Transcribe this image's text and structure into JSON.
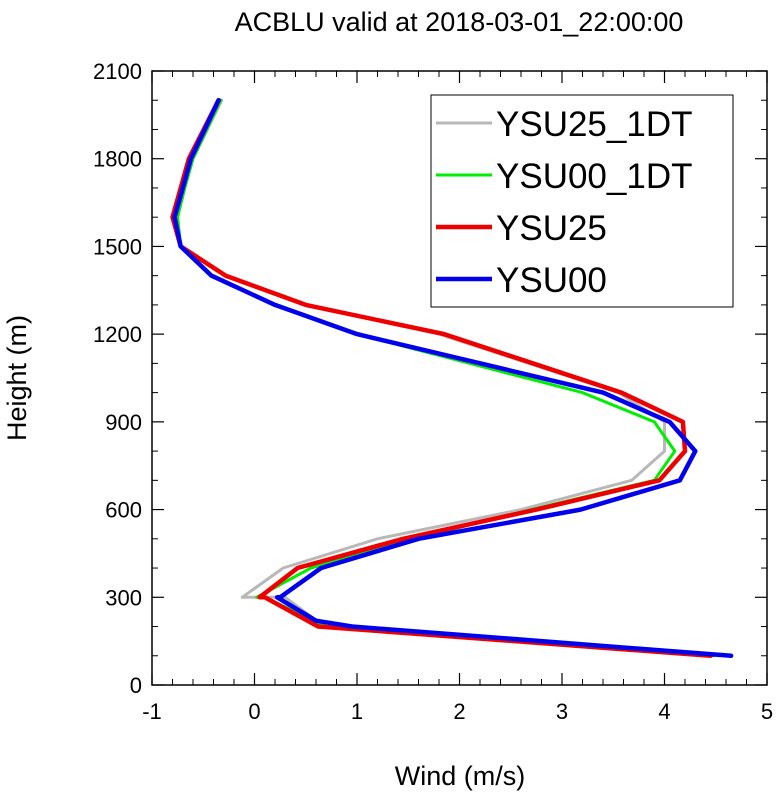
{
  "chart_data": {
    "type": "line",
    "title": "ACBLU valid at 2018-03-01_22:00:00",
    "xlabel": "Wind (m/s)",
    "ylabel": "Height (m)",
    "xlim": [
      -1,
      5
    ],
    "ylim": [
      0,
      2100
    ],
    "x_ticks": [
      "-1",
      "0",
      "1",
      "2",
      "3",
      "4",
      "5"
    ],
    "y_ticks": [
      "0",
      "300",
      "600",
      "900",
      "1200",
      "1500",
      "1800",
      "2100"
    ],
    "grid": false,
    "legend_position": "top-right",
    "series": [
      {
        "name": "YSU25_1DT",
        "color": "#b8b8b8",
        "width": 3,
        "points": [
          [
            4.45,
            100
          ],
          [
            0.68,
            200
          ],
          [
            0.3,
            300
          ],
          [
            -0.12,
            300
          ],
          [
            0.28,
            400
          ],
          [
            1.2,
            500
          ],
          [
            2.6,
            600
          ],
          [
            3.68,
            700
          ],
          [
            4.0,
            800
          ],
          [
            4.0,
            900
          ],
          [
            3.55,
            1000
          ],
          [
            1.8,
            1200
          ],
          [
            0.5,
            1300
          ],
          [
            -0.28,
            1400
          ],
          [
            -0.72,
            1500
          ],
          [
            -0.78,
            1600
          ],
          [
            -0.72,
            1700
          ],
          [
            -0.6,
            1800
          ],
          [
            -0.32,
            2000
          ]
        ]
      },
      {
        "name": "YSU00_1DT",
        "color": "#00ee00",
        "width": 3,
        "points": [
          [
            4.48,
            100
          ],
          [
            0.7,
            200
          ],
          [
            0.1,
            300
          ],
          [
            0.02,
            300
          ],
          [
            0.55,
            400
          ],
          [
            1.55,
            500
          ],
          [
            2.7,
            600
          ],
          [
            3.9,
            700
          ],
          [
            4.1,
            800
          ],
          [
            3.9,
            900
          ],
          [
            3.2,
            1000
          ],
          [
            1.0,
            1200
          ],
          [
            0.2,
            1300
          ],
          [
            -0.42,
            1400
          ],
          [
            -0.72,
            1500
          ],
          [
            -0.75,
            1600
          ],
          [
            -0.68,
            1700
          ],
          [
            -0.6,
            1800
          ],
          [
            -0.33,
            2000
          ]
        ]
      },
      {
        "name": "YSU25",
        "color": "#ee0000",
        "width": 4.5,
        "points": [
          [
            4.45,
            100
          ],
          [
            0.62,
            200
          ],
          [
            0.1,
            300
          ],
          [
            0.05,
            300
          ],
          [
            0.42,
            400
          ],
          [
            1.45,
            500
          ],
          [
            2.75,
            600
          ],
          [
            3.95,
            700
          ],
          [
            4.2,
            800
          ],
          [
            4.18,
            900
          ],
          [
            3.58,
            1000
          ],
          [
            1.85,
            1200
          ],
          [
            0.5,
            1300
          ],
          [
            -0.28,
            1400
          ],
          [
            -0.72,
            1500
          ],
          [
            -0.8,
            1600
          ],
          [
            -0.72,
            1700
          ],
          [
            -0.64,
            1800
          ],
          [
            -0.35,
            2000
          ]
        ]
      },
      {
        "name": "YSU00",
        "color": "#0000ee",
        "width": 4.5,
        "points": [
          [
            4.65,
            100
          ],
          [
            0.95,
            200
          ],
          [
            0.6,
            220
          ],
          [
            0.22,
            300
          ],
          [
            0.25,
            300
          ],
          [
            0.65,
            400
          ],
          [
            1.6,
            500
          ],
          [
            3.18,
            600
          ],
          [
            4.15,
            700
          ],
          [
            4.3,
            800
          ],
          [
            4.05,
            900
          ],
          [
            3.4,
            1000
          ],
          [
            1.0,
            1200
          ],
          [
            0.2,
            1300
          ],
          [
            -0.42,
            1400
          ],
          [
            -0.72,
            1500
          ],
          [
            -0.78,
            1600
          ],
          [
            -0.7,
            1700
          ],
          [
            -0.62,
            1800
          ],
          [
            -0.35,
            2000
          ]
        ]
      }
    ]
  }
}
